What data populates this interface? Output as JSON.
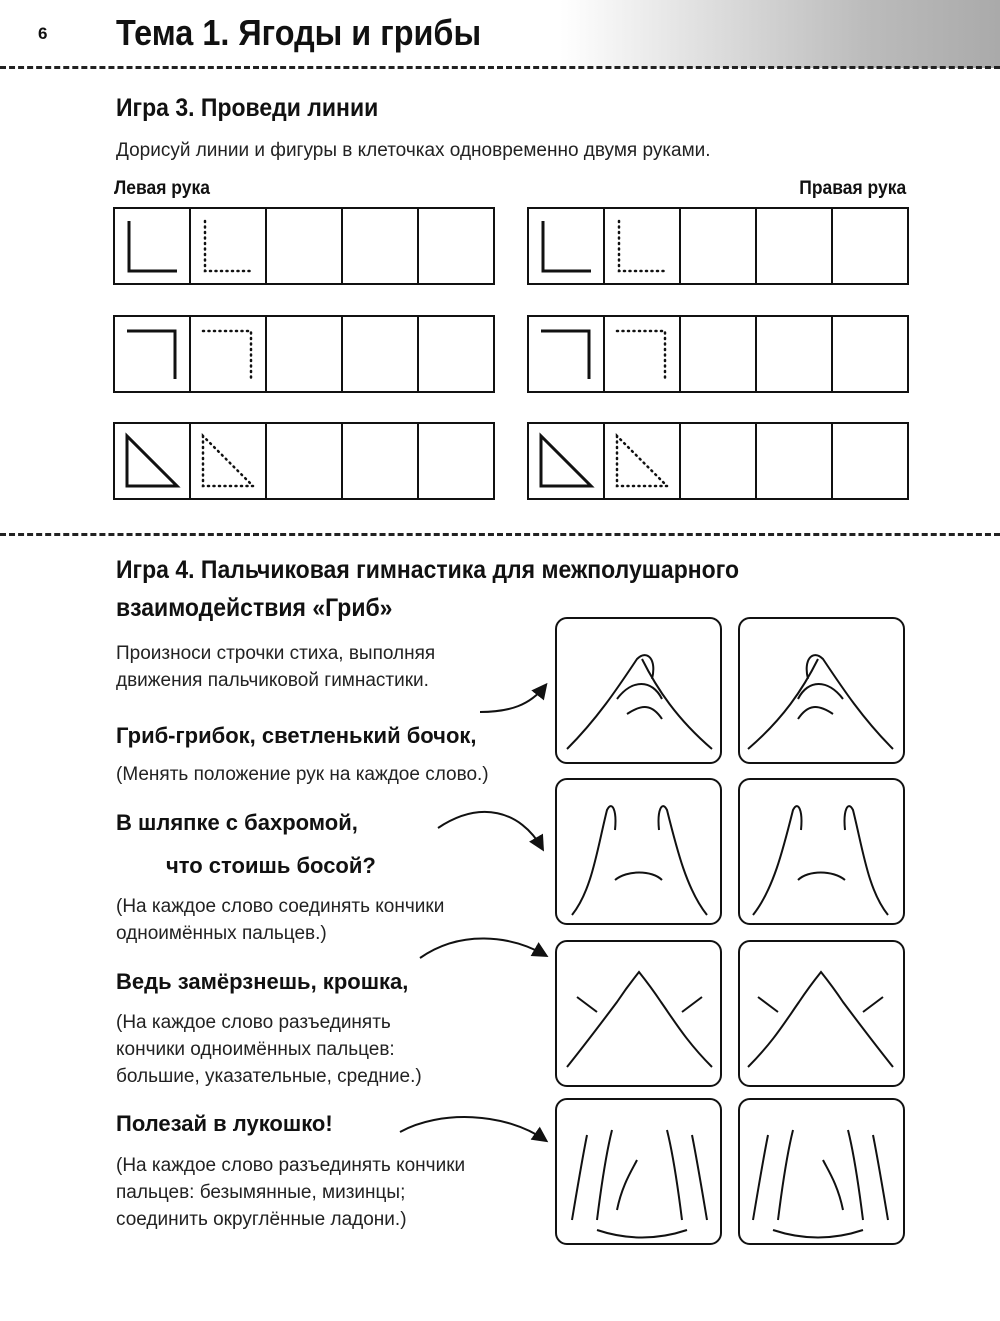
{
  "header": {
    "page_number": "6",
    "topic_title": "Тема 1. Ягоды и грибы"
  },
  "game3": {
    "title": "Игра 3. Проведи линии",
    "instruction": "Дорисуй линии и фигуры в клеточках одновременно двумя руками.",
    "left_label": "Левая рука",
    "right_label": "Правая рука",
    "rows": [
      {
        "shape": "corner-bottom-left",
        "cells": 5
      },
      {
        "shape": "corner-top-right",
        "cells": 5
      },
      {
        "shape": "right-triangle",
        "cells": 5
      }
    ]
  },
  "game4": {
    "title_line1": "Игра 4. Пальчиковая гимнастика для межполушарного",
    "title_line2": "взаимодействия «Гриб»",
    "intro_line1": "Произноси строчки стиха, выполняя",
    "intro_line2": "движения пальчиковой гимнастики.",
    "stanzas": [
      {
        "verse": [
          "Гриб-грибок, светленький бочок,"
        ],
        "note": [
          "(Менять положение рук на каждое слово.)"
        ]
      },
      {
        "verse": [
          "В шляпке с бахромой,",
          "что стоишь босой?"
        ],
        "note": [
          "(На каждое слово соединять кончики",
          "одноимённых пальцев.)"
        ]
      },
      {
        "verse": [
          "Ведь замёрзнешь, крошка,"
        ],
        "note": [
          "(На каждое слово разъединять",
          "кончики одноимённых пальцев:",
          "большие, указательные, средние.)"
        ]
      },
      {
        "verse": [
          "Полезай в лукошко!"
        ],
        "note": [
          "(На каждое слово разъединять кончики",
          "пальцев: безымянные, мизинцы;",
          "соединить округлённые ладони.)"
        ]
      }
    ],
    "illustrations": [
      "hands-interlocked-fingers",
      "hands-fingertips-joined",
      "hands-fingertips-separating",
      "hands-rounded-palms"
    ]
  }
}
